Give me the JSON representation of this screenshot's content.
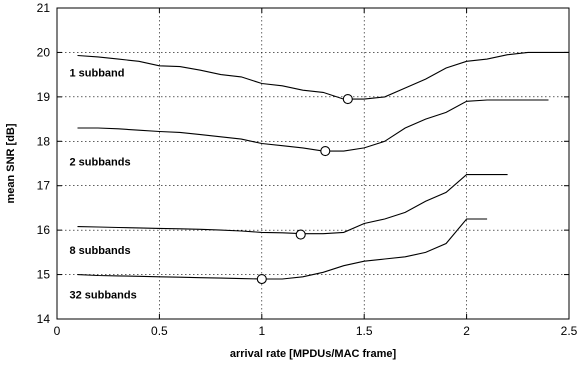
{
  "chart_data": {
    "type": "line",
    "title": "",
    "xlabel": "arrival rate [MPDUs/MAC frame]",
    "ylabel": "mean SNR [dB]",
    "xlim": [
      0,
      2.5
    ],
    "ylim": [
      14,
      21
    ],
    "xticks": [
      0,
      0.5,
      1,
      1.5,
      2,
      2.5
    ],
    "xtick_labels": [
      "0",
      "0.5",
      "1",
      "1.5",
      "2",
      "2.5"
    ],
    "yticks": [
      14,
      15,
      16,
      17,
      18,
      19,
      20,
      21
    ],
    "ytick_labels": [
      "14",
      "15",
      "16",
      "17",
      "18",
      "19",
      "20",
      "21"
    ],
    "grid": true,
    "legend": "none",
    "series": [
      {
        "name": "1 subband",
        "label_at": [
          0.1,
          19.55
        ],
        "x": [
          0.1,
          0.2,
          0.3,
          0.4,
          0.5,
          0.6,
          0.7,
          0.8,
          0.9,
          1.0,
          1.1,
          1.2,
          1.3,
          1.4,
          1.5,
          1.6,
          1.7,
          1.8,
          1.9,
          2.0,
          2.1,
          2.2,
          2.3,
          2.4,
          2.5
        ],
        "y": [
          19.93,
          19.9,
          19.85,
          19.8,
          19.7,
          19.68,
          19.6,
          19.5,
          19.45,
          19.3,
          19.25,
          19.15,
          19.1,
          18.95,
          18.95,
          19.0,
          19.2,
          19.4,
          19.65,
          19.8,
          19.85,
          19.95,
          20.0,
          20.0,
          20.0
        ],
        "marker": {
          "x": 1.42,
          "y": 18.95
        }
      },
      {
        "name": "2 subbands",
        "label_at": [
          0.1,
          17.55
        ],
        "x": [
          0.1,
          0.2,
          0.3,
          0.4,
          0.5,
          0.6,
          0.7,
          0.8,
          0.9,
          1.0,
          1.1,
          1.2,
          1.3,
          1.4,
          1.5,
          1.6,
          1.7,
          1.8,
          1.9,
          2.0,
          2.1,
          2.2,
          2.3,
          2.4
        ],
        "y": [
          18.3,
          18.3,
          18.28,
          18.25,
          18.22,
          18.2,
          18.15,
          18.1,
          18.05,
          17.95,
          17.9,
          17.85,
          17.78,
          17.78,
          17.85,
          18.0,
          18.3,
          18.5,
          18.65,
          18.9,
          18.93,
          18.93,
          18.93,
          18.93
        ],
        "marker": {
          "x": 1.31,
          "y": 17.78
        }
      },
      {
        "name": "8 subbands",
        "label_at": [
          0.1,
          15.55
        ],
        "x": [
          0.1,
          0.2,
          0.3,
          0.4,
          0.5,
          0.6,
          0.7,
          0.8,
          0.9,
          1.0,
          1.1,
          1.2,
          1.3,
          1.4,
          1.5,
          1.6,
          1.7,
          1.8,
          1.9,
          2.0,
          2.1,
          2.2
        ],
        "y": [
          16.08,
          16.07,
          16.06,
          16.05,
          16.04,
          16.03,
          16.02,
          16.0,
          15.98,
          15.95,
          15.94,
          15.92,
          15.92,
          15.95,
          16.15,
          16.25,
          16.4,
          16.65,
          16.85,
          17.25,
          17.25,
          17.25
        ],
        "marker": {
          "x": 1.19,
          "y": 15.9
        }
      },
      {
        "name": "32 subbands",
        "label_at": [
          0.1,
          14.55
        ],
        "x": [
          0.1,
          0.2,
          0.3,
          0.4,
          0.5,
          0.6,
          0.7,
          0.8,
          0.9,
          1.0,
          1.1,
          1.2,
          1.3,
          1.4,
          1.5,
          1.6,
          1.7,
          1.8,
          1.9,
          2.0,
          2.1
        ],
        "y": [
          15.0,
          14.98,
          14.97,
          14.96,
          14.95,
          14.94,
          14.93,
          14.92,
          14.91,
          14.9,
          14.9,
          14.95,
          15.05,
          15.2,
          15.3,
          15.35,
          15.4,
          15.5,
          15.7,
          16.25,
          16.25
        ],
        "marker": {
          "x": 1.0,
          "y": 14.9
        }
      }
    ]
  }
}
